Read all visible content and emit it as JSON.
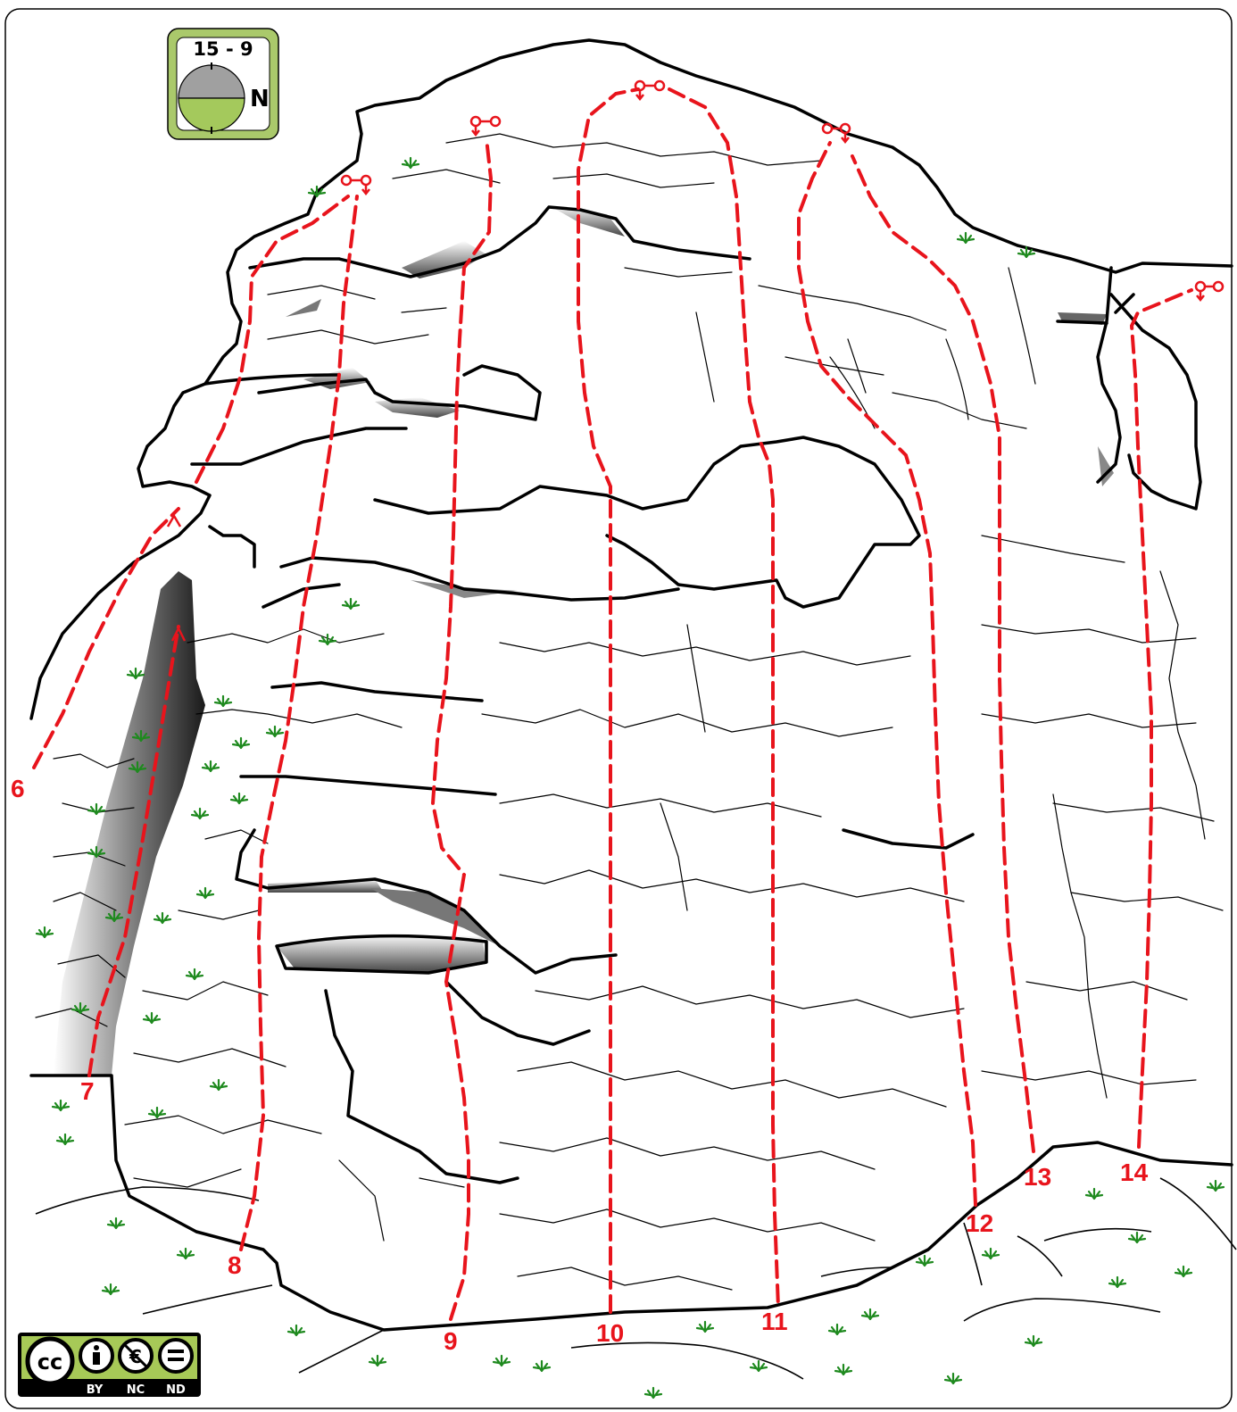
{
  "compass": {
    "title": "15 - 9",
    "direction": "N",
    "frame_color": "#aac96b",
    "lower_color": "#a4c95c",
    "upper_color": "#a0a0a0"
  },
  "routes": [
    {
      "id": "6",
      "label": "6"
    },
    {
      "id": "7",
      "label": "7"
    },
    {
      "id": "8",
      "label": "8"
    },
    {
      "id": "9",
      "label": "9"
    },
    {
      "id": "10",
      "label": "10"
    },
    {
      "id": "11",
      "label": "11"
    },
    {
      "id": "12",
      "label": "12"
    },
    {
      "id": "13",
      "label": "13"
    },
    {
      "id": "14",
      "label": "14"
    }
  ],
  "license": {
    "badges": [
      "BY",
      "NC",
      "ND"
    ],
    "icon_names": [
      "cc-icon",
      "attribution-icon",
      "noncommercial-icon",
      "noderivatives-icon"
    ],
    "color": "#a7c957"
  },
  "colors": {
    "route": "#e8141c",
    "rock_outline": "#000000",
    "grass": "#1f8a1f"
  }
}
